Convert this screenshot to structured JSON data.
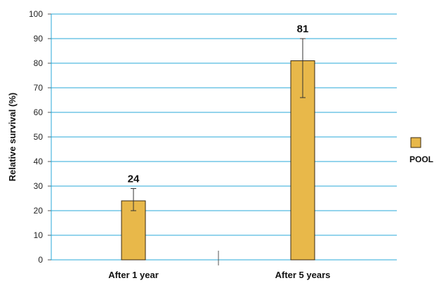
{
  "chart_data": {
    "type": "bar",
    "categories": [
      "After 1 year",
      "After 5 years"
    ],
    "series": [
      {
        "name": "POOL",
        "values": [
          24,
          81
        ],
        "error_low": [
          20,
          66
        ],
        "error_high": [
          29,
          90
        ],
        "data_labels": [
          "24",
          "81"
        ]
      }
    ],
    "ylabel": "Relative survival (%)",
    "xlabel": "",
    "ylim": [
      0,
      100
    ],
    "yticks": [
      0,
      10,
      20,
      30,
      40,
      50,
      60,
      70,
      80,
      90,
      100
    ],
    "grid": true,
    "legend_position": "right",
    "colors": {
      "bar": "#e8b84a",
      "bar_border": "#3a2a10",
      "grid": "#29a9d8",
      "axis": "#555555"
    }
  }
}
